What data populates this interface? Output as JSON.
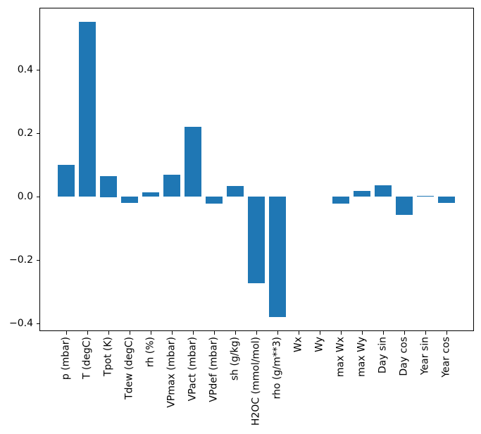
{
  "figure": {
    "background": "#ffffff"
  },
  "chart_data": {
    "type": "bar",
    "title": "",
    "xlabel": "",
    "ylabel": "",
    "categories": [
      "p (mbar)",
      "T (degC)",
      "Tpot (K)",
      "Tdew (degC)",
      "rh (%)",
      "VPmax (mbar)",
      "VPact (mbar)",
      "VPdef (mbar)",
      "sh (g/kg)",
      "H2OC (mmol/mol)",
      "rho (g/m**3)",
      "Wx",
      "Wy",
      "max Wx",
      "max Wy",
      "Day sin",
      "Day cos",
      "Year sin",
      "Year cos"
    ],
    "values": [
      0.1,
      0.552,
      0.066,
      -0.019,
      0.014,
      0.069,
      0.221,
      -0.022,
      0.033,
      -0.274,
      -0.38,
      0.0,
      0.0,
      -0.022,
      0.018,
      0.036,
      -0.058,
      0.003,
      -0.021
    ],
    "bar_color": "#1f77b4",
    "axis_color": "#000000",
    "ylim": [
      -0.426,
      0.594
    ],
    "yticks": [
      0.4,
      0.2,
      0.0,
      -0.2,
      -0.4
    ],
    "ytick_labels": [
      "0.4",
      "0.2",
      "0.0",
      "−0.2",
      "−0.4"
    ],
    "x_tick_rotation": 90,
    "grid": false,
    "legend": null
  }
}
